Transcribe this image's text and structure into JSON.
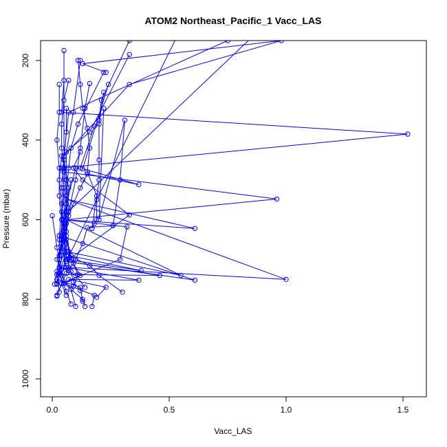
{
  "chart_data": {
    "type": "line",
    "title": "ATOM2 Northeast_Pacific_1 Vacc_LAS",
    "xlabel": "Vacc_LAS",
    "ylabel": "Pressure (mbar)",
    "xlim": [
      -0.05,
      1.6
    ],
    "ylim": [
      1045,
      150
    ],
    "y_reversed": true,
    "x_ticks": [
      0.0,
      0.5,
      1.0,
      1.5
    ],
    "x_tick_labels": [
      "0.0",
      "0.5",
      "1.0",
      "1.5"
    ],
    "y_ticks": [
      200,
      400,
      600,
      800,
      1000
    ],
    "y_tick_labels": [
      "200",
      "400",
      "600",
      "800",
      "1000"
    ],
    "grid": false,
    "legend": "none",
    "marker": "open-circle",
    "color": "#0000ff",
    "series": [
      {
        "x": [
          0.17,
          0.18,
          0.05,
          0.12,
          0.08,
          0.06,
          0.04,
          0.03,
          0.03,
          0.02,
          0.03,
          0.03
        ],
        "y": [
          818,
          790,
          760,
          740,
          700,
          650,
          600,
          540,
          470,
          400,
          330,
          260
        ]
      },
      {
        "x": [
          0.1,
          0.08,
          0.04,
          0.06,
          0.05,
          0.06,
          0.05,
          0.07,
          0.75
        ],
        "y": [
          818,
          775,
          740,
          690,
          630,
          540,
          440,
          330,
          150
        ]
      },
      {
        "x": [
          0.14,
          0.13,
          0.05,
          0.03,
          0.06,
          0.04,
          0.05,
          0.33,
          0.98,
          0.13,
          0.23
        ],
        "y": [
          818,
          800,
          760,
          700,
          610,
          520,
          440,
          260,
          150,
          208,
          230
        ]
      },
      {
        "x": [
          0.08,
          0.06,
          0.03,
          0.04,
          0.05,
          0.06,
          0.04,
          1.52,
          0.04,
          0.05
        ],
        "y": [
          812,
          780,
          735,
          690,
          620,
          560,
          470,
          385,
          330,
          250
        ]
      },
      {
        "x": [
          0.13,
          0.12,
          0.02,
          0.06,
          0.55,
          0.06,
          0.96,
          0.05
        ],
        "y": [
          805,
          770,
          750,
          680,
          740,
          600,
          548,
          480
        ]
      },
      {
        "x": [
          0.19,
          0.23,
          0.07,
          0.37,
          0.06,
          0.04,
          0.05,
          1.0
        ],
        "y": [
          795,
          770,
          750,
          752,
          720,
          660,
          590,
          60
        ]
      },
      {
        "x": [
          0.06,
          0.04,
          0.29,
          0.32,
          0.05,
          0.61,
          0.06,
          1.0,
          0.07
        ],
        "y": [
          790,
          760,
          700,
          618,
          600,
          622,
          548,
          750,
          720
        ]
      },
      {
        "x": [
          0.3,
          0.2,
          0.16,
          0.07,
          0.38,
          0.06,
          0.06,
          0.06,
          0.08
        ],
        "y": [
          782,
          740,
          715,
          690,
          728,
          700,
          660,
          580,
          500
        ]
      },
      {
        "x": [
          0.03,
          0.02,
          0.46,
          0.06,
          0.33,
          0.13,
          0.09,
          0.12
        ],
        "y": [
          782,
          738,
          740,
          705,
          588,
          500,
          470,
          430
        ]
      },
      {
        "x": [
          0.14,
          0.1,
          0.05,
          0.06,
          0.03,
          0.61,
          0.06,
          0.6
        ],
        "y": [
          770,
          740,
          720,
          690,
          640,
          752,
          705,
          60
        ]
      },
      {
        "x": [
          0.02,
          0.03,
          0.03,
          0.04,
          0.05,
          0.05,
          0.04,
          0.04,
          0.05,
          0.07
        ],
        "y": [
          760,
          700,
          640,
          580,
          520,
          470,
          420,
          360,
          300,
          250
        ]
      },
      {
        "x": [
          0.01,
          0.02,
          0.03,
          0.04,
          0.06,
          0.06,
          0.07,
          0.08,
          0.11,
          0.22
        ],
        "y": [
          762,
          730,
          690,
          650,
          600,
          540,
          470,
          420,
          360,
          230
        ]
      },
      {
        "x": [
          0.02,
          0.04,
          0.02,
          0.05,
          0.07,
          0.09,
          0.12,
          0.15,
          0.37,
          0.13,
          0.24
        ],
        "y": [
          762,
          725,
          700,
          640,
          590,
          560,
          520,
          485,
          512,
          472,
          260
        ]
      },
      {
        "x": [
          0.02,
          0.06,
          0.08,
          0.05,
          0.04,
          0.03,
          0.04,
          0.16,
          0.33
        ],
        "y": [
          790,
          735,
          690,
          620,
          560,
          500,
          440,
          380,
          185
        ]
      },
      {
        "x": [
          0.02,
          0.04,
          0.03,
          0.05,
          0.06,
          0.07,
          0.06,
          0.06,
          0.09,
          0.12
        ],
        "y": [
          792,
          760,
          720,
          680,
          630,
          570,
          500,
          430,
          330,
          200
        ]
      },
      {
        "x": [
          0.0,
          0.02,
          0.03,
          0.04,
          0.04,
          0.05,
          0.05,
          0.06,
          0.06
        ],
        "y": [
          590,
          670,
          700,
          660,
          600,
          520,
          450,
          380,
          320
        ]
      },
      {
        "x": [
          0.03,
          0.03,
          0.06,
          0.1,
          0.12,
          0.18,
          0.2,
          0.22
        ],
        "y": [
          700,
          650,
          560,
          470,
          470,
          365,
          360,
          280
        ]
      },
      {
        "x": [
          0.17,
          0.18,
          0.19,
          0.19,
          0.2,
          0.2,
          0.2,
          0.21,
          0.33
        ],
        "y": [
          622,
          610,
          600,
          550,
          500,
          450,
          350,
          300,
          150
        ]
      },
      {
        "x": [
          0.17,
          0.19,
          0.15,
          0.16,
          0.15,
          0.13,
          0.12,
          0.11
        ],
        "y": [
          622,
          540,
          480,
          420,
          370,
          320,
          260,
          200
        ]
      },
      {
        "x": [
          0.07,
          0.1,
          0.13,
          0.15,
          0.26,
          0.29,
          0.31,
          0.2,
          0.22
        ],
        "y": [
          728,
          700,
          660,
          620,
          615,
          500,
          350,
          600,
          320
        ]
      },
      {
        "x": [
          0.09,
          0.11,
          0.09,
          0.07,
          0.06,
          0.07,
          0.1,
          0.12,
          0.14,
          0.16
        ],
        "y": [
          768,
          738,
          710,
          680,
          640,
          580,
          500,
          420,
          320,
          258
        ]
      },
      {
        "x": [
          0.12,
          0.09,
          0.08,
          0.06,
          0.05,
          0.06,
          0.07,
          0.05,
          0.05
        ],
        "y": [
          778,
          756,
          730,
          690,
          650,
          600,
          520,
          450,
          175
        ]
      }
    ]
  }
}
